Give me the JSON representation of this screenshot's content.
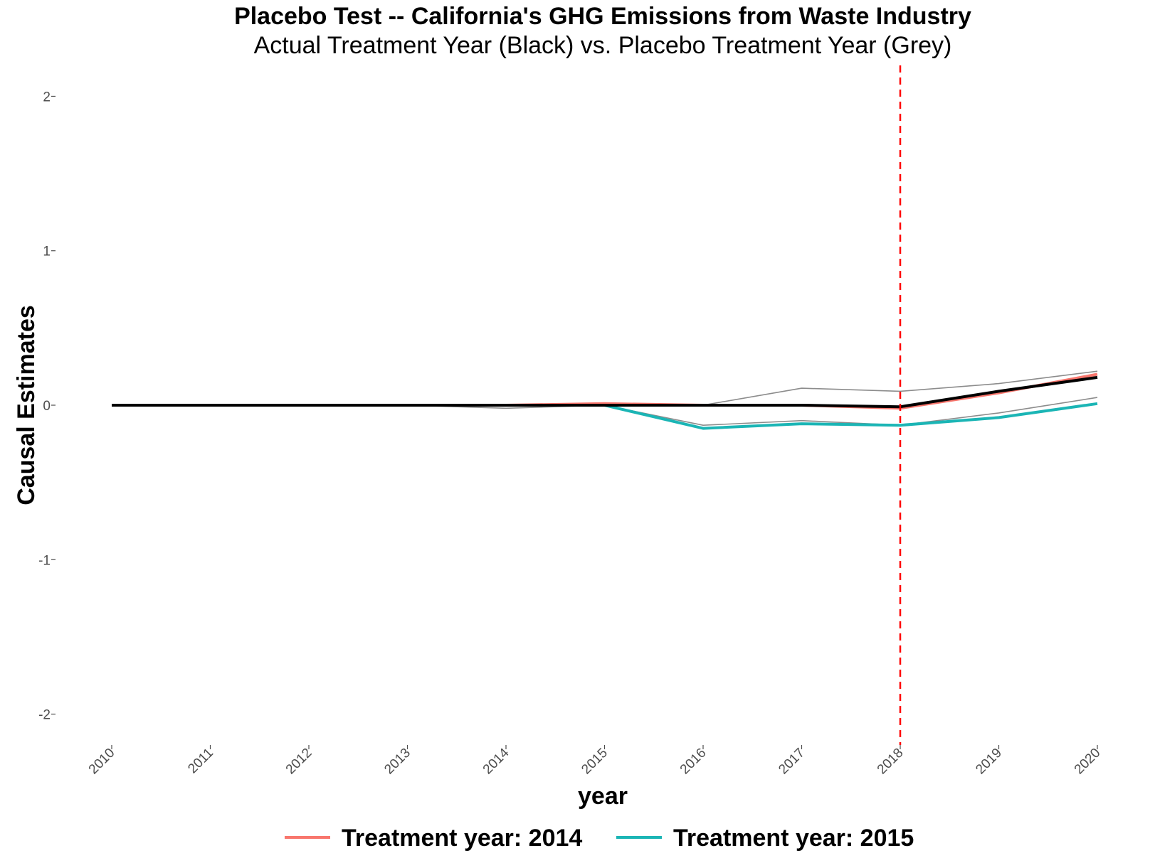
{
  "chart_data": {
    "type": "line",
    "title": "Placebo Test -- California's GHG Emissions from Waste Industry",
    "subtitle": "Actual Treatment Year (Black) vs. Placebo Treatment Year (Grey)",
    "xlabel": "year",
    "ylabel": "Causal Estimates",
    "x": [
      2010,
      2011,
      2012,
      2013,
      2014,
      2015,
      2016,
      2017,
      2018,
      2019,
      2020
    ],
    "x_tick_labels": [
      "2010",
      "2011",
      "2012",
      "2013",
      "2014",
      "2015",
      "2016",
      "2017",
      "2018",
      "2019",
      "2020"
    ],
    "y_ticks": [
      -2,
      -1,
      0,
      1,
      2
    ],
    "y_tick_labels": [
      "-2",
      "-1",
      "0",
      "1",
      "2"
    ],
    "ylim": [
      -2.2,
      2.2
    ],
    "grid": false,
    "legend_position": "bottom",
    "vline": {
      "x": 2018,
      "color": "#ff0000",
      "style": "dashed"
    },
    "series": [
      {
        "role": "placebo",
        "color": "#8c8c8c",
        "values": [
          0,
          0,
          0,
          0,
          -0.02,
          0,
          0,
          0.11,
          0.09,
          0.14,
          0.22
        ]
      },
      {
        "role": "placebo",
        "color": "#8c8c8c",
        "values": [
          0,
          0,
          0,
          0,
          0,
          0,
          -0.13,
          -0.1,
          -0.13,
          -0.05,
          0.05
        ]
      },
      {
        "role": "legend",
        "name": "Treatment year: 2014",
        "color": "#f8766d",
        "values": [
          0,
          0,
          0,
          0,
          0,
          0.01,
          0,
          0,
          -0.02,
          0.08,
          0.2
        ]
      },
      {
        "role": "legend",
        "name": "Treatment year: 2015",
        "color": "#1bb5b5",
        "values": [
          0,
          0,
          0,
          0,
          0,
          0,
          -0.15,
          -0.12,
          -0.13,
          -0.08,
          0.01
        ]
      },
      {
        "role": "actual",
        "color": "#000000",
        "values": [
          0,
          0,
          0,
          0,
          0,
          0,
          0,
          0,
          -0.01,
          0.09,
          0.18
        ]
      }
    ],
    "legend": [
      {
        "label": "Treatment year: 2014",
        "color": "#f8766d"
      },
      {
        "label": "Treatment year: 2015",
        "color": "#1bb5b5"
      }
    ]
  }
}
